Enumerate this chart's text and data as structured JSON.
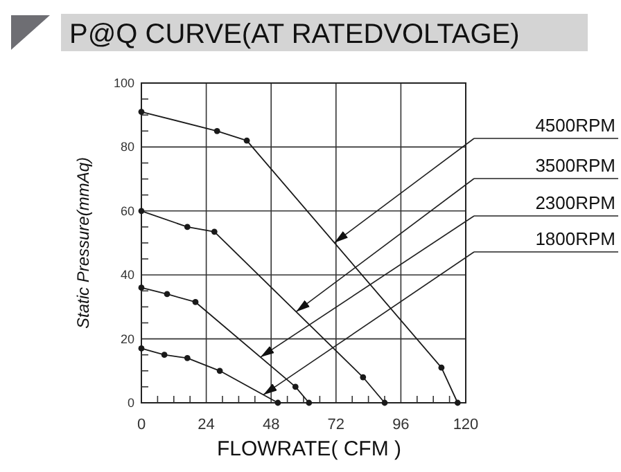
{
  "chart_data": {
    "type": "line",
    "title": "P@Q CURVE(AT RATEDVOLTAGE)",
    "xlabel": "FLOWRATE( CFM )",
    "ylabel": "Static Pressure(mmAq)",
    "xlim": [
      0,
      120
    ],
    "xticks": [
      0,
      24,
      48,
      72,
      96,
      120
    ],
    "ylim": [
      0,
      100
    ],
    "yticks": [
      0,
      20,
      40,
      60,
      80,
      100
    ],
    "grid": true,
    "marker": "circle",
    "line_style": "solid",
    "series": [
      {
        "name": "4500RPM",
        "color": "#1a1a1a",
        "x": [
          0,
          28,
          39,
          111,
          117
        ],
        "values": [
          91,
          85,
          82,
          11,
          0
        ]
      },
      {
        "name": "3500RPM",
        "color": "#1a1a1a",
        "x": [
          0,
          17,
          27,
          82,
          90
        ],
        "values": [
          60,
          55,
          53.5,
          8,
          0
        ]
      },
      {
        "name": "2300RPM",
        "color": "#1a1a1a",
        "x": [
          0,
          9.5,
          20,
          57,
          62
        ],
        "values": [
          36,
          34,
          31.5,
          5,
          0
        ]
      },
      {
        "name": "1800RPM",
        "color": "#1a1a1a",
        "x": [
          0,
          8.5,
          17,
          29,
          50.5
        ],
        "values": [
          17,
          15,
          14,
          10,
          0
        ]
      }
    ]
  }
}
